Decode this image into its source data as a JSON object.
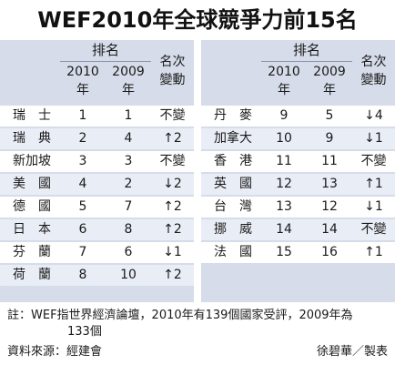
{
  "title": "WEF2010年全球競爭力前15名",
  "headers": {
    "rank": "排名",
    "y2010_a": "2010",
    "y2010_b": "年",
    "y2009_a": "2009",
    "y2009_b": "年",
    "change_a": "名次",
    "change_b": "變動"
  },
  "left_rows": [
    {
      "country": "瑞　士",
      "r2010": "1",
      "r2009": "1",
      "change": "不變"
    },
    {
      "country": "瑞　典",
      "r2010": "2",
      "r2009": "4",
      "change": "↑2"
    },
    {
      "country": "新加坡",
      "r2010": "3",
      "r2009": "3",
      "change": "不變"
    },
    {
      "country": "美　國",
      "r2010": "4",
      "r2009": "2",
      "change": "↓2"
    },
    {
      "country": "德　國",
      "r2010": "5",
      "r2009": "7",
      "change": "↑2"
    },
    {
      "country": "日　本",
      "r2010": "6",
      "r2009": "8",
      "change": "↑2"
    },
    {
      "country": "芬　蘭",
      "r2010": "7",
      "r2009": "6",
      "change": "↓1"
    },
    {
      "country": "荷　蘭",
      "r2010": "8",
      "r2009": "10",
      "change": "↑2"
    }
  ],
  "right_rows": [
    {
      "country": "丹　麥",
      "r2010": "9",
      "r2009": "5",
      "change": "↓4"
    },
    {
      "country": "加拿大",
      "r2010": "10",
      "r2009": "9",
      "change": "↓1"
    },
    {
      "country": "香　港",
      "r2010": "11",
      "r2009": "11",
      "change": "不變"
    },
    {
      "country": "英　國",
      "r2010": "12",
      "r2009": "13",
      "change": "↑1"
    },
    {
      "country": "台　灣",
      "r2010": "13",
      "r2009": "12",
      "change": "↓1"
    },
    {
      "country": "挪　威",
      "r2010": "14",
      "r2009": "14",
      "change": "不變"
    },
    {
      "country": "法　國",
      "r2010": "15",
      "r2009": "16",
      "change": "↑1"
    }
  ],
  "note_line1": "註：WEF指世界經濟論壇，2010年有139個國家受評，2009年為",
  "note_line2": "133個",
  "source": "資料來源：經建會",
  "credit": "徐碧華／製表"
}
